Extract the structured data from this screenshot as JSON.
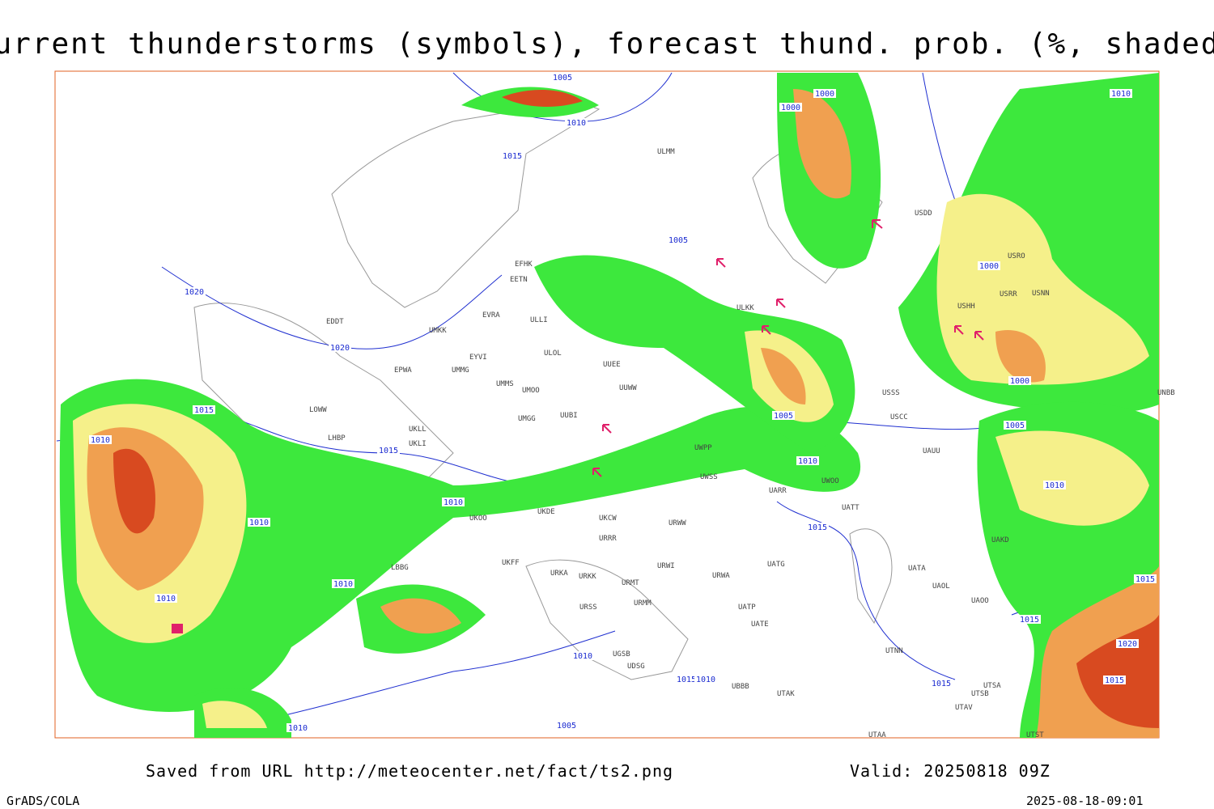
{
  "header": {
    "title": "Current thunderstorms (symbols), forecast thund. prob. (%, shaded)"
  },
  "footer": {
    "saved": "Saved from URL http://meteocenter.net/fact/ts2.png",
    "valid": "Valid: 20250818 09Z",
    "left": "GrADS/COLA",
    "right": "2025-08-18-09:01"
  },
  "isobar_labels": [
    "1005",
    "1010",
    "1015",
    "1000",
    "1000",
    "1010",
    "1000",
    "1000",
    "1005",
    "1010",
    "1015",
    "1015",
    "1020",
    "1015",
    "1020",
    "1020",
    "1015",
    "1010",
    "1015",
    "1010",
    "1010",
    "1010",
    "1010",
    "1010",
    "1015",
    "1010",
    "1005",
    "1010",
    "1015",
    "1005",
    "1010",
    "1005",
    "1015"
  ],
  "station_labels": [
    "EFHK",
    "EETN",
    "EVRA",
    "UMKK",
    "EYVI",
    "EPWA",
    "UMMG",
    "UMMS",
    "UMOO",
    "UMGG",
    "UKLL",
    "UKLI",
    "LHBP",
    "LOWW",
    "EDDT",
    "ULLI",
    "ULOL",
    "UUEE",
    "UUWW",
    "UUBI",
    "ULMM",
    "ULKK",
    "UKOO",
    "UKDE",
    "UKCW",
    "URRR",
    "UKFF",
    "URKA",
    "URKK",
    "URMT",
    "URMM",
    "URSS",
    "UGSB",
    "UDSG",
    "UBBB",
    "UTAK",
    "UTAA",
    "UATG",
    "URWA",
    "URWI",
    "UATP",
    "UATE",
    "UTNN",
    "UATA",
    "UAOL",
    "UAOO",
    "UAKD",
    "USSS",
    "USCC",
    "UAUU",
    "UATT",
    "UWOO",
    "UARR",
    "UWSS",
    "URWW",
    "UWPP",
    "USDD",
    "USHH",
    "USRR",
    "USNN",
    "USRO",
    "UNBB",
    "UTSB",
    "UTAV",
    "UTSA",
    "UTST",
    "LBBG"
  ]
}
